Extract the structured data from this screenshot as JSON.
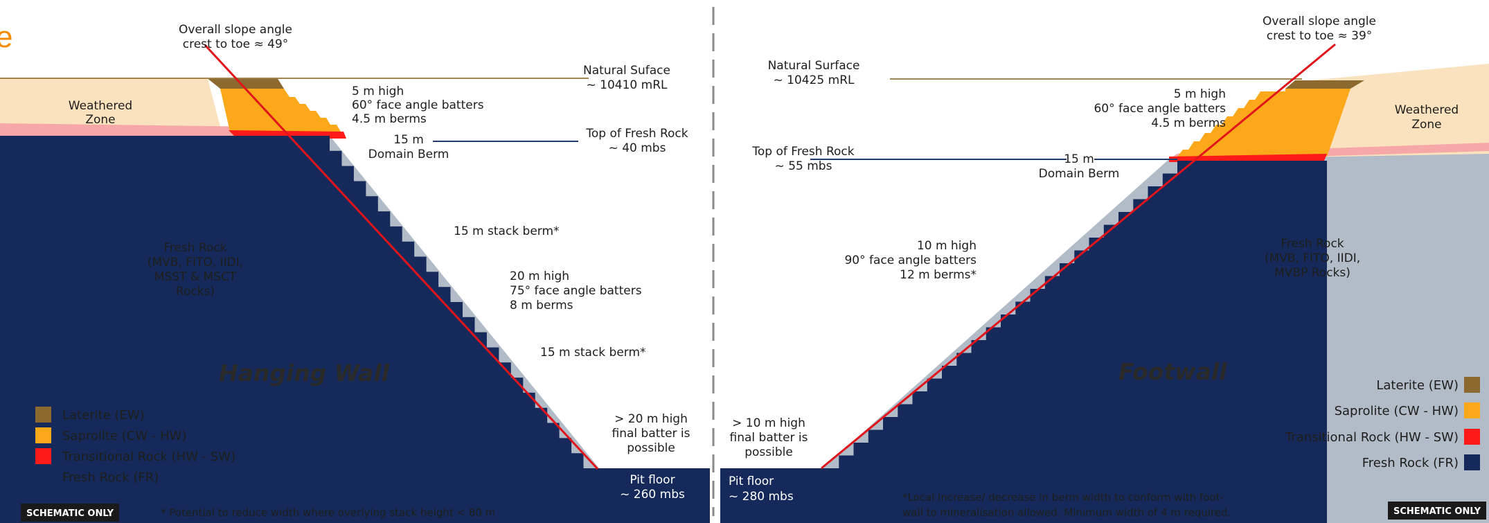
{
  "colors": {
    "laterite": "#8c6a2f",
    "saprolite": "#fba81a",
    "transitional": "#ff1a1a",
    "fresh": "#152a5a",
    "rock_bg": "#b2bcc8",
    "weathered": "#fbe2bf",
    "slope_line": "#e1141c",
    "orange_text": "#f28c00"
  },
  "cut_off_glyph": "e",
  "hanging_wall": {
    "title": "Hanging Wall",
    "overall_slope": [
      "Overall slope angle",
      "crest to toe ≈ 49°"
    ],
    "natural_surface": [
      "Natural Suface",
      "~ 10410 mRL"
    ],
    "weathered_zone": [
      "Weathered",
      "Zone"
    ],
    "upper_batters": [
      "5 m high",
      "60° face angle batters",
      "4.5 m berms"
    ],
    "domain_berm": [
      "15 m",
      "Domain Berm"
    ],
    "top_fresh_rock": [
      "Top of Fresh Rock",
      "~ 40 mbs"
    ],
    "stack_berm_1": "15 m stack berm*",
    "lower_batters": [
      "20 m high",
      "75° face angle batters",
      "8 m berms"
    ],
    "stack_berm_2": "15 m stack berm*",
    "final_batter": [
      "> 20 m high",
      "final batter is",
      "possible"
    ],
    "fresh_rock": [
      "Fresh Rock",
      "(MVB, FITO, IIDI,",
      "MSST & MSCT",
      "Rocks)"
    ],
    "pit_floor": [
      "Pit floor",
      "~ 260 mbs"
    ],
    "legend": [
      "Laterite (EW)",
      "Saprolite (CW - HW)",
      "Transitional Rock (HW - SW)",
      "Fresh Rock (FR)"
    ],
    "badge": "SCHEMATIC ONLY",
    "footnote": "* Potential to reduce width where overlying stack height < 80 m"
  },
  "footwall": {
    "title": "Footwall",
    "overall_slope": [
      "Overall slope angle",
      "crest to toe ≈ 39°"
    ],
    "natural_surface": [
      "Natural Surface",
      "~ 10425 mRL"
    ],
    "weathered_zone": [
      "Weathered",
      "Zone"
    ],
    "upper_batters": [
      "5 m high",
      "60° face angle batters",
      "4.5 m berms"
    ],
    "top_fresh_rock": [
      "Top of Fresh Rock",
      "~ 55 mbs"
    ],
    "domain_berm": [
      "15 m",
      "Domain Berm"
    ],
    "batters": [
      "10 m high",
      "90° face angle batters",
      "12 m berms*"
    ],
    "fresh_rock": [
      "Fresh Rock",
      "(MVB, FITO, IIDI,",
      "MVBP Rocks)"
    ],
    "final_batter": [
      "> 10 m high",
      "final batter is",
      "possible"
    ],
    "pit_floor": [
      "Pit floor",
      "~ 280 mbs"
    ],
    "legend": [
      "Laterite (EW)",
      "Saprolite (CW - HW)",
      "Transitional Rock (HW - SW)",
      "Fresh Rock (FR)"
    ],
    "footnote": [
      "*Local increase/ decrease in berm width to conform with foot-",
      "wall to mineralisation allowed. Minimum width of 4 m required."
    ],
    "badge": "SCHEMATIC ONLY"
  }
}
